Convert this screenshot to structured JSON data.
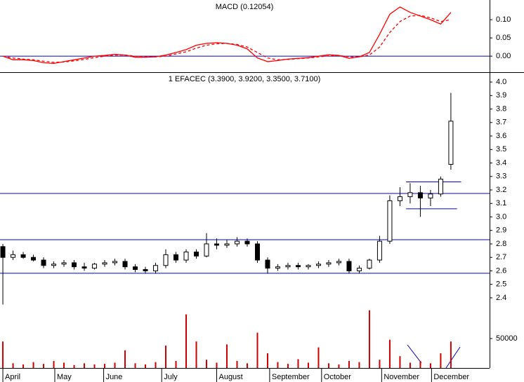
{
  "chart_data": [
    {
      "type": "line",
      "title": "MACD (0.12054)",
      "ylim": [
        -0.044,
        0.154
      ],
      "yticks": [
        {
          "value": 0.1,
          "label": "0.10"
        },
        {
          "value": 0.05,
          "label": "0.05"
        },
        {
          "value": 0,
          "label": "0.00"
        }
      ],
      "xlim": [
        -0.28,
        47.8
      ],
      "zero_line_color": "#0000cc",
      "series": [
        {
          "name": "MACD",
          "color": "#ff0000",
          "dash": false,
          "values": [
            0.0,
            -0.01,
            -0.01,
            -0.012,
            -0.018,
            -0.02,
            -0.015,
            -0.01,
            -0.005,
            0.0,
            0.002,
            0.005,
            0.003,
            -0.003,
            -0.003,
            -0.002,
            0.003,
            0.01,
            0.018,
            0.03,
            0.035,
            0.037,
            0.035,
            0.03,
            0.02,
            -0.005,
            -0.015,
            -0.012,
            -0.008,
            -0.006,
            -0.004,
            0.0,
            0.004,
            0.002,
            -0.006,
            -0.002,
            0.01,
            0.06,
            0.115,
            0.135,
            0.12,
            0.11,
            0.1,
            0.088,
            0.12
          ]
        },
        {
          "name": "Signal",
          "color": "#ff0000",
          "dash": true,
          "values": [
            0.0,
            -0.005,
            -0.008,
            -0.01,
            -0.014,
            -0.017,
            -0.016,
            -0.013,
            -0.009,
            -0.004,
            0.0,
            0.003,
            0.003,
            0.0,
            -0.002,
            -0.002,
            0.0,
            0.006,
            0.012,
            0.022,
            0.03,
            0.034,
            0.035,
            0.032,
            0.025,
            0.01,
            -0.005,
            -0.01,
            -0.009,
            -0.007,
            -0.005,
            -0.002,
            0.001,
            0.002,
            -0.002,
            -0.002,
            0.003,
            0.025,
            0.065,
            0.095,
            0.11,
            0.112,
            0.105,
            0.095,
            0.1
          ]
        }
      ]
    },
    {
      "type": "candlestick",
      "title": "1 EFACEC (3.3900, 3.9200, 3.3500, 3.7100)",
      "ylim": [
        2.332,
        4.068
      ],
      "yticks": [
        {
          "value": 4,
          "label": "4.0"
        },
        3.9,
        3.8,
        3.7,
        3.6,
        3.5,
        3.4,
        3.3,
        3.2,
        3.1,
        {
          "value": 3,
          "label": "3.0"
        },
        2.9,
        2.8,
        2.7,
        2.6,
        2.5,
        2.4
      ],
      "xlim": [
        -0.28,
        47.8
      ],
      "line_color": "#0000cc",
      "hlines": [
        3.174,
        2.831,
        2.582
      ],
      "segments": [
        {
          "y": 3.26,
          "x": [
            39.6,
            45
          ]
        },
        {
          "y": 3.06,
          "x": [
            39.6,
            44.6
          ]
        }
      ],
      "open": [
        2.78,
        2.7,
        2.72,
        2.7,
        2.68,
        2.64,
        2.65,
        2.66,
        2.63,
        2.62,
        2.65,
        2.66,
        2.67,
        2.63,
        2.61,
        2.6,
        2.64,
        2.72,
        2.68,
        2.74,
        2.71,
        2.8,
        2.79,
        2.8,
        2.82,
        2.8,
        2.68,
        2.62,
        2.63,
        2.64,
        2.63,
        2.64,
        2.65,
        2.66,
        2.67,
        2.6,
        2.62,
        2.68,
        2.82,
        3.12,
        3.15,
        3.18,
        3.14,
        3.17,
        3.39
      ],
      "high": [
        2.8,
        2.75,
        2.74,
        2.72,
        2.7,
        2.67,
        2.68,
        2.68,
        2.66,
        2.66,
        2.68,
        2.69,
        2.69,
        2.65,
        2.63,
        2.66,
        2.76,
        2.74,
        2.76,
        2.76,
        2.88,
        2.84,
        2.83,
        2.85,
        2.84,
        2.82,
        2.7,
        2.65,
        2.66,
        2.66,
        2.65,
        2.67,
        2.68,
        2.69,
        2.69,
        2.64,
        2.69,
        2.86,
        3.16,
        3.22,
        3.25,
        3.23,
        3.2,
        3.3,
        3.92
      ],
      "low": [
        2.35,
        2.68,
        2.69,
        2.67,
        2.62,
        2.62,
        2.63,
        2.61,
        2.6,
        2.61,
        2.63,
        2.64,
        2.61,
        2.59,
        2.58,
        2.58,
        2.62,
        2.66,
        2.66,
        2.69,
        2.7,
        2.76,
        2.77,
        2.78,
        2.78,
        2.66,
        2.58,
        2.6,
        2.61,
        2.61,
        2.61,
        2.62,
        2.63,
        2.64,
        2.58,
        2.58,
        2.61,
        2.66,
        2.8,
        3.08,
        3.1,
        3.0,
        3.08,
        3.15,
        3.35
      ],
      "close": [
        2.7,
        2.72,
        2.7,
        2.68,
        2.64,
        2.65,
        2.66,
        2.63,
        2.62,
        2.65,
        2.66,
        2.67,
        2.63,
        2.61,
        2.6,
        2.64,
        2.72,
        2.68,
        2.74,
        2.71,
        2.8,
        2.79,
        2.8,
        2.82,
        2.8,
        2.68,
        2.62,
        2.63,
        2.64,
        2.63,
        2.64,
        2.65,
        2.66,
        2.67,
        2.6,
        2.62,
        2.68,
        2.82,
        3.12,
        3.15,
        3.18,
        3.14,
        3.17,
        3.28,
        3.71
      ]
    },
    {
      "type": "bar",
      "color": "#cc0000",
      "ylim": [
        0,
        100000
      ],
      "yticks": [
        50000
      ],
      "xlim": [
        -0.28,
        47.8
      ],
      "xticks": [
        {
          "value": 0,
          "label": "April"
        },
        {
          "value": 5.1,
          "label": "May"
        },
        {
          "value": 9.9,
          "label": "June"
        },
        {
          "value": 15.6,
          "label": "July"
        },
        {
          "value": 21,
          "label": "August"
        },
        {
          "value": 26.2,
          "label": "September"
        },
        {
          "value": 31.3,
          "label": "October"
        },
        {
          "value": 37.2,
          "label": "November"
        },
        {
          "value": 42.1,
          "label": "December"
        }
      ],
      "values": [
        45000,
        8000,
        6000,
        10000,
        7000,
        12000,
        9000,
        5000,
        8000,
        6000,
        7000,
        9000,
        30000,
        8000,
        6000,
        10000,
        38000,
        12000,
        91000,
        45000,
        14000,
        9000,
        40000,
        12000,
        8000,
        60000,
        25000,
        10000,
        7000,
        15000,
        9000,
        35000,
        8000,
        6000,
        12000,
        10000,
        98000,
        14000,
        48000,
        20000,
        9000,
        12000,
        8000,
        25000,
        45000
      ]
    }
  ]
}
